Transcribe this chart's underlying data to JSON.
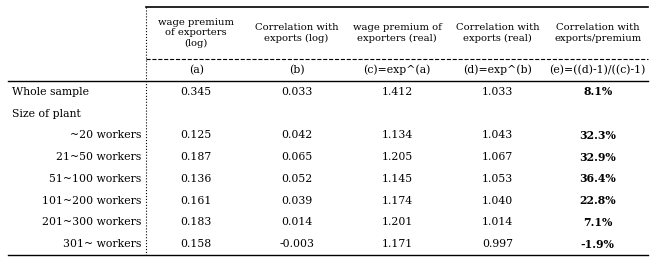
{
  "col_headers_line1": [
    "wage premium\nof exporters\n(log)",
    "Correlation with\nexports (log)",
    "wage premium of\nexporters (real)",
    "Correlation with\nexports (real)",
    "Correlation with\nexports/premium"
  ],
  "col_headers_line2": [
    "(a)",
    "(b)",
    "(c)=exp^(a)",
    "(d)=exp^(b)",
    "(e)=((d)-1)/((c)-1)"
  ],
  "row_labels": [
    "Whole sample",
    "Size of plant",
    "  ~20 workers",
    "  21~50 workers",
    "  51~100 workers",
    "  101~200 workers",
    "  201~300 workers",
    "  301~ workers"
  ],
  "row_label_align": [
    "left",
    "left",
    "right",
    "right",
    "right",
    "right",
    "right",
    "right"
  ],
  "data": [
    [
      "0.345",
      "0.033",
      "1.412",
      "1.033",
      "8.1%"
    ],
    [
      "",
      "",
      "",
      "",
      ""
    ],
    [
      "0.125",
      "0.042",
      "1.134",
      "1.043",
      "32.3%"
    ],
    [
      "0.187",
      "0.065",
      "1.205",
      "1.067",
      "32.9%"
    ],
    [
      "0.136",
      "0.052",
      "1.145",
      "1.053",
      "36.4%"
    ],
    [
      "0.161",
      "0.039",
      "1.174",
      "1.040",
      "22.8%"
    ],
    [
      "0.183",
      "0.014",
      "1.201",
      "1.014",
      "7.1%"
    ],
    [
      "0.158",
      "-0.003",
      "1.171",
      "0.997",
      "-1.9%"
    ]
  ],
  "background_color": "#ffffff",
  "header1_fs": 7.2,
  "header2_fs": 7.8,
  "data_fs": 7.8,
  "label_fs": 7.8
}
